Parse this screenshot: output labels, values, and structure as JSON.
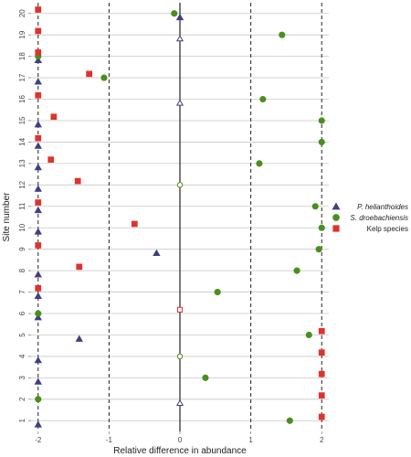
{
  "chart_data": {
    "type": "scatter",
    "title": "",
    "xlabel": "Relative difference in abundance",
    "ylabel": "Site number",
    "xlim": [
      -2.1,
      2.1
    ],
    "ylim": [
      0.5,
      20.5
    ],
    "x_ticks": [
      -2,
      -1,
      0,
      1,
      2
    ],
    "x_tick_labels": [
      "-2",
      "-1",
      "0",
      "1",
      "2"
    ],
    "y_ticks": [
      1,
      2,
      3,
      4,
      5,
      6,
      7,
      8,
      9,
      10,
      11,
      12,
      13,
      14,
      15,
      16,
      17,
      18,
      19,
      20
    ],
    "y_tick_labels": [
      "1",
      "2",
      "3",
      "4",
      "5",
      "6",
      "7",
      "8",
      "9",
      "10",
      "11",
      "12",
      "13",
      "14",
      "15",
      "16",
      "17",
      "18",
      "19",
      "20"
    ],
    "grid": "horizontal",
    "dashed_vlines": [
      -2,
      -1,
      1,
      2
    ],
    "solid_vline": 0,
    "legend_position": "right",
    "series": [
      {
        "name": "P. helianthoides",
        "label_italic": true,
        "marker": "triangle",
        "color": "#403f82",
        "offset": 0.18,
        "points": [
          {
            "x": -2,
            "y": 1
          },
          {
            "x": 0,
            "y": 2,
            "hollow": true
          },
          {
            "x": -2,
            "y": 3
          },
          {
            "x": -2,
            "y": 4
          },
          {
            "x": -1.42,
            "y": 5
          },
          {
            "x": -2,
            "y": 6
          },
          {
            "x": -2,
            "y": 7
          },
          {
            "x": -2,
            "y": 8
          },
          {
            "x": -0.33,
            "y": 9
          },
          {
            "x": -2,
            "y": 10
          },
          {
            "x": -2,
            "y": 11
          },
          {
            "x": -2,
            "y": 12
          },
          {
            "x": -2,
            "y": 13
          },
          {
            "x": -2,
            "y": 14
          },
          {
            "x": -2,
            "y": 15
          },
          {
            "x": 0,
            "y": 16,
            "hollow": true
          },
          {
            "x": -2,
            "y": 17
          },
          {
            "x": -2,
            "y": 18
          },
          {
            "x": 0,
            "y": 19,
            "hollow": true
          },
          {
            "x": 0,
            "y": 20
          }
        ]
      },
      {
        "name": "S. droebachiensis",
        "label_italic": true,
        "marker": "circle",
        "color": "#4a8f1d",
        "offset": 0,
        "points": [
          {
            "x": 1.55,
            "y": 1
          },
          {
            "x": -2,
            "y": 2
          },
          {
            "x": 0.36,
            "y": 3
          },
          {
            "x": 0,
            "y": 4,
            "hollow": true
          },
          {
            "x": 1.82,
            "y": 5
          },
          {
            "x": -2,
            "y": 6
          },
          {
            "x": 0.53,
            "y": 7
          },
          {
            "x": 1.65,
            "y": 8
          },
          {
            "x": 1.96,
            "y": 9
          },
          {
            "x": 2,
            "y": 10
          },
          {
            "x": 1.91,
            "y": 11
          },
          {
            "x": 0,
            "y": 12,
            "hollow": true
          },
          {
            "x": 1.12,
            "y": 13
          },
          {
            "x": 2,
            "y": 14
          },
          {
            "x": 2,
            "y": 15
          },
          {
            "x": 1.17,
            "y": 16
          },
          {
            "x": -1.07,
            "y": 17
          },
          {
            "x": -2,
            "y": 18
          },
          {
            "x": 1.44,
            "y": 19
          },
          {
            "x": -0.08,
            "y": 20
          }
        ]
      },
      {
        "name": "Kelp species",
        "label_italic": false,
        "marker": "square",
        "color": "#e0322d",
        "offset": -0.18,
        "points": [
          {
            "x": 2,
            "y": 1
          },
          {
            "x": 2,
            "y": 2
          },
          {
            "x": 2,
            "y": 3
          },
          {
            "x": 2,
            "y": 4
          },
          {
            "x": 2,
            "y": 5
          },
          {
            "x": 0,
            "y": 6,
            "hollow": true
          },
          {
            "x": -2,
            "y": 7
          },
          {
            "x": -1.42,
            "y": 8
          },
          {
            "x": -2,
            "y": 9
          },
          {
            "x": -0.64,
            "y": 10
          },
          {
            "x": -2,
            "y": 11
          },
          {
            "x": -1.44,
            "y": 12
          },
          {
            "x": -1.82,
            "y": 13
          },
          {
            "x": -2,
            "y": 14
          },
          {
            "x": -1.78,
            "y": 15
          },
          {
            "x": -2,
            "y": 16
          },
          {
            "x": -1.28,
            "y": 17
          },
          {
            "x": -2,
            "y": 18
          },
          {
            "x": -2,
            "y": 19
          },
          {
            "x": -2,
            "y": 20
          }
        ]
      }
    ]
  }
}
